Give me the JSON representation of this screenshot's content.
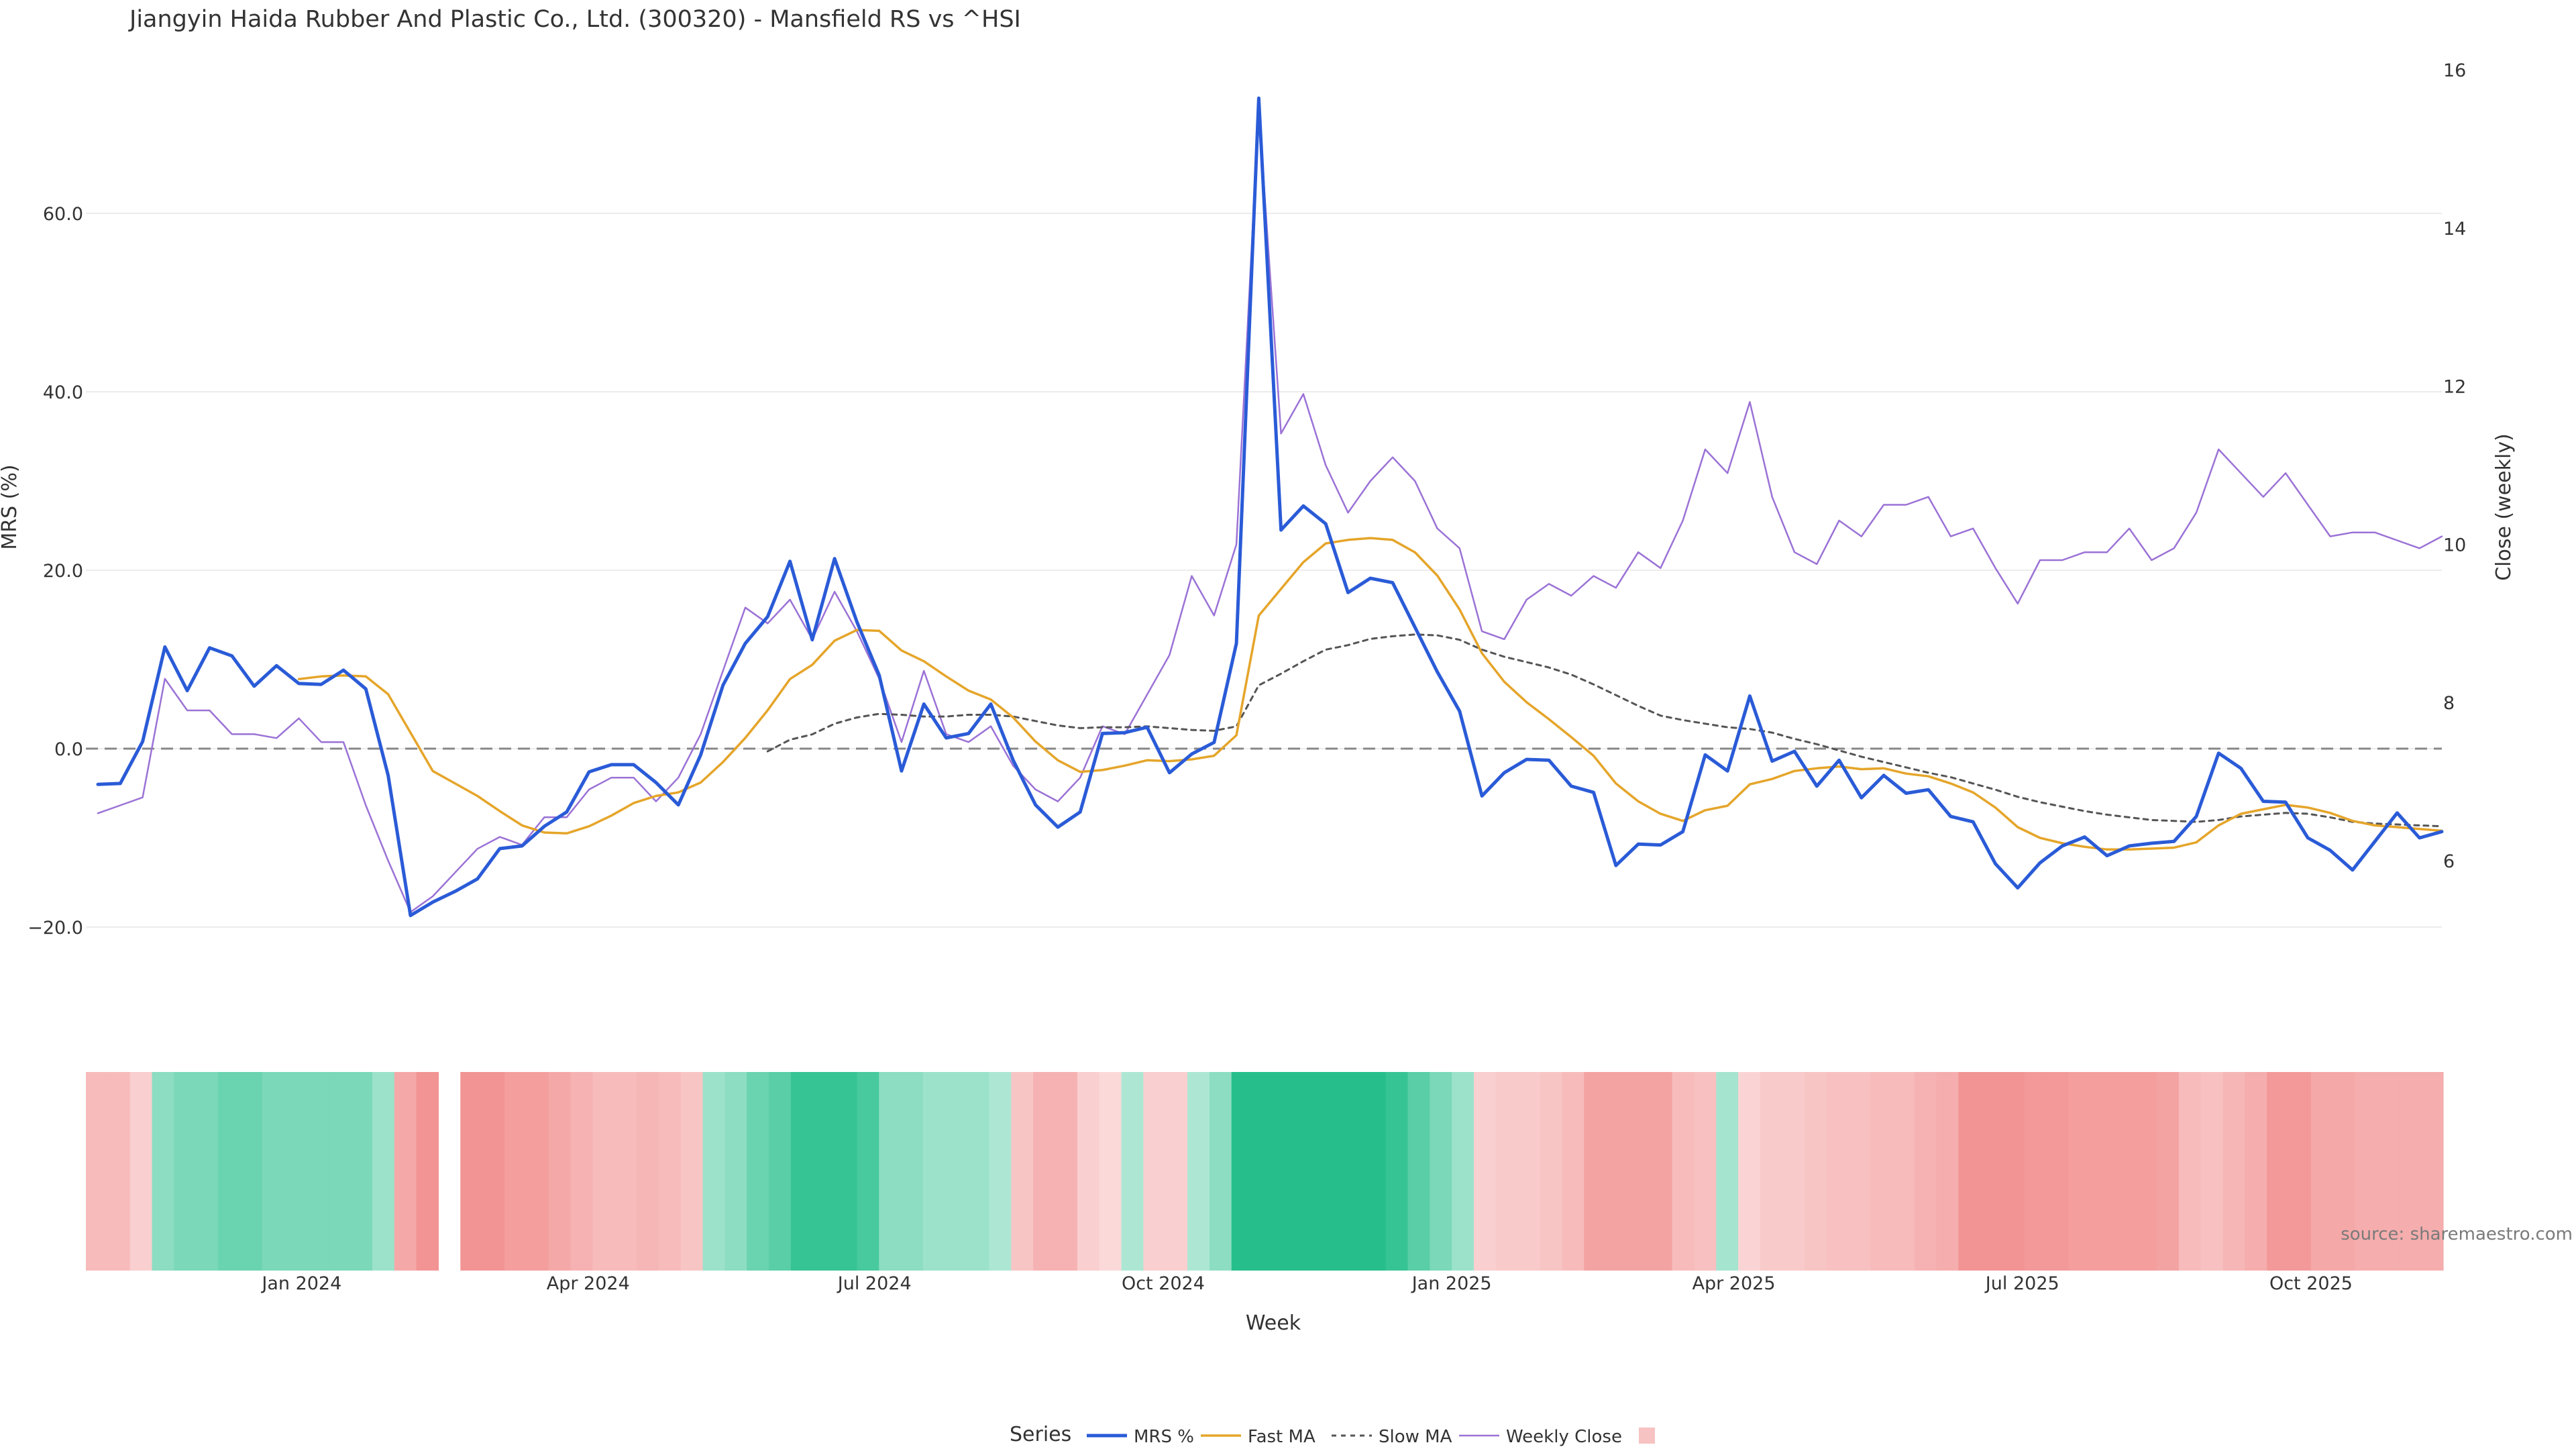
{
  "title": "Jiangyin Haida Rubber And Plastic Co., Ltd. (300320) - Mansfield RS vs ^HSI",
  "source": "source: sharemaestro.com",
  "colors": {
    "mrs": "#2a5bd7",
    "fast": "#e5a52a",
    "slow": "#555555",
    "close": "#9b72d6",
    "zero": "#888888",
    "grid": "#ececec",
    "positive": "#26bf8c",
    "negative": "#f08080"
  },
  "legend": {
    "title": "Series",
    "items": [
      "MRS %",
      "Fast MA",
      "Slow MA",
      "Weekly Close",
      ""
    ]
  },
  "chart_data": {
    "type": "line",
    "xlabel": "Week",
    "ylabel_left": "MRS (%)",
    "ylabel_right": "Close (weekly)",
    "ylim_left": [
      -30,
      73
    ],
    "ylim_right": [
      4.3,
      16.3
    ],
    "left_ticks": [
      -20,
      0,
      20,
      40,
      60
    ],
    "left_tick_labels": [
      "−20.0",
      "0.0",
      "20.0",
      "40.0",
      "60.0"
    ],
    "right_ticks": [
      6,
      8,
      10,
      12,
      14,
      16
    ],
    "right_tick_labels": [
      "6",
      "8",
      "10",
      "12",
      "14",
      "16"
    ],
    "x_tick_labels": [
      "Jan 2024",
      "Apr 2024",
      "Jul 2024",
      "Oct 2024",
      "Jan 2025",
      "Apr 2025",
      "Jul 2025",
      "Oct 2025"
    ],
    "x_tick_weeks": [
      9.8,
      22.8,
      35.8,
      48.9,
      62.0,
      74.8,
      87.9,
      101.0
    ],
    "grid": true,
    "zero_line": true,
    "legend_position": "bottom-center",
    "heatmap_gap_weeks": [
      16
    ],
    "series": [
      {
        "name": "MRS %",
        "axis": "left",
        "values": [
          -4,
          -3.9,
          0.8,
          11.4,
          6.5,
          11.3,
          10.4,
          7,
          9.3,
          7.3,
          7.2,
          8.8,
          6.7,
          -3,
          -18.7,
          -17.2,
          -16,
          -14.6,
          -11.2,
          -10.9,
          -8.7,
          -7.1,
          -2.6,
          -1.8,
          -1.8,
          -3.8,
          -6.3,
          -0.7,
          7.1,
          11.8,
          14.8,
          21,
          12.2,
          21.3,
          14.2,
          8.2,
          -2.5,
          5,
          1.2,
          1.7,
          5,
          -1.3,
          -6.3,
          -8.8,
          -7.1,
          1.7,
          1.8,
          2.4,
          -2.7,
          -0.6,
          0.7,
          11.8,
          72.9,
          24.5,
          27.2,
          25.2,
          17.5,
          19.1,
          18.6,
          13.6,
          8.6,
          4.2,
          -5.3,
          -2.7,
          -1.2,
          -1.3,
          -4.2,
          -4.9,
          -13.1,
          -10.7,
          -10.8,
          -9.3,
          -0.7,
          -2.5,
          5.9,
          -1.4,
          -0.3,
          -4.2,
          -1.3,
          -5.5,
          -3,
          -5,
          -4.6,
          -7.6,
          -8.2,
          -12.9,
          -15.6,
          -12.8,
          -10.9,
          -9.9,
          -12,
          -10.9,
          -10.6,
          -10.4,
          -7.6,
          -0.5,
          -2.2,
          -5.9,
          -6,
          -10,
          -11.4,
          -13.6,
          -10.4,
          -7.2,
          -10,
          -9.3
        ]
      },
      {
        "name": "Fast MA",
        "axis": "left",
        "values": [
          null,
          null,
          null,
          null,
          null,
          null,
          null,
          null,
          null,
          7.8,
          8.1,
          8.2,
          8.1,
          6.1,
          1.8,
          -2.5,
          -3.9,
          -5.3,
          -7,
          -8.6,
          -9.4,
          -9.5,
          -8.7,
          -7.5,
          -6.1,
          -5.3,
          -4.9,
          -3.8,
          -1.5,
          1.2,
          4.3,
          7.8,
          9.4,
          12.1,
          13.3,
          13.2,
          11,
          9.8,
          8.1,
          6.5,
          5.5,
          3.5,
          0.8,
          -1.3,
          -2.6,
          -2.4,
          -1.9,
          -1.3,
          -1.4,
          -1.2,
          -0.8,
          1.5,
          14.9,
          17.9,
          20.9,
          23,
          23.4,
          23.6,
          23.4,
          22,
          19.4,
          15.6,
          10.7,
          7.5,
          5.2,
          3.3,
          1.3,
          -0.8,
          -3.9,
          -5.9,
          -7.3,
          -8.1,
          -6.9,
          -6.4,
          -4,
          -3.4,
          -2.5,
          -2.2,
          -2,
          -2.3,
          -2.2,
          -2.8,
          -3.1,
          -3.9,
          -4.9,
          -6.6,
          -8.8,
          -10,
          -10.6,
          -11,
          -11.3,
          -11.3,
          -11.2,
          -11.1,
          -10.5,
          -8.6,
          -7.3,
          -6.8,
          -6.3,
          -6.6,
          -7.2,
          -8.1,
          -8.6,
          -8.8,
          -9,
          -9.2
        ]
      },
      {
        "name": "Slow MA",
        "axis": "left",
        "values": [
          null,
          null,
          null,
          null,
          null,
          null,
          null,
          null,
          null,
          null,
          null,
          null,
          null,
          null,
          null,
          null,
          null,
          null,
          null,
          null,
          null,
          null,
          null,
          null,
          null,
          null,
          null,
          null,
          null,
          null,
          -0.3,
          1,
          1.6,
          2.8,
          3.5,
          3.9,
          3.8,
          3.6,
          3.6,
          3.8,
          3.8,
          3.6,
          3.1,
          2.6,
          2.3,
          2.4,
          2.4,
          2.5,
          2.3,
          2.1,
          2,
          2.5,
          7.1,
          8.4,
          9.8,
          11.1,
          11.6,
          12.3,
          12.6,
          12.8,
          12.7,
          12.2,
          11.1,
          10.3,
          9.7,
          9.1,
          8.3,
          7.2,
          6,
          4.8,
          3.7,
          3.2,
          2.8,
          2.4,
          2.2,
          1.8,
          1.1,
          0.5,
          -0.2,
          -0.9,
          -1.5,
          -2.1,
          -2.7,
          -3.2,
          -3.9,
          -4.6,
          -5.4,
          -6,
          -6.5,
          -7,
          -7.4,
          -7.7,
          -8,
          -8.1,
          -8.2,
          -8,
          -7.6,
          -7.4,
          -7.2,
          -7.3,
          -7.7,
          -8.2,
          -8.4,
          -8.5,
          -8.6,
          -8.7
        ]
      },
      {
        "name": "Weekly Close",
        "axis": "right",
        "values": [
          6.6,
          6.7,
          6.8,
          8.3,
          7.9,
          7.9,
          7.6,
          7.6,
          7.55,
          7.8,
          7.5,
          7.5,
          6.7,
          6,
          5.35,
          5.55,
          5.85,
          6.15,
          6.3,
          6.2,
          6.55,
          6.55,
          6.9,
          7.05,
          7.05,
          6.75,
          7.05,
          7.6,
          8.4,
          9.2,
          9,
          9.3,
          8.8,
          9.4,
          8.9,
          8.3,
          7.5,
          8.4,
          7.6,
          7.5,
          7.7,
          7.2,
          6.9,
          6.75,
          7.05,
          7.7,
          7.6,
          8.1,
          8.6,
          9.6,
          9.1,
          10,
          15.5,
          11.4,
          11.9,
          11,
          10.4,
          10.8,
          11.1,
          10.8,
          10.2,
          9.95,
          8.9,
          8.8,
          9.3,
          9.5,
          9.35,
          9.6,
          9.45,
          9.9,
          9.7,
          10.3,
          11.2,
          10.9,
          11.8,
          10.6,
          9.9,
          9.75,
          10.3,
          10.1,
          10.5,
          10.5,
          10.6,
          10.1,
          10.2,
          9.7,
          9.25,
          9.8,
          9.8,
          9.9,
          9.9,
          10.2,
          9.8,
          9.95,
          10.4,
          11.2,
          10.9,
          10.6,
          10.9,
          10.5,
          10.1,
          10.15,
          10.15,
          10.05,
          9.95,
          10.1
        ]
      }
    ],
    "heatmap": [
      -0.4,
      -0.4,
      -0.2,
      0.4,
      0.5,
      0.5,
      0.6,
      0.6,
      0.5,
      0.5,
      0.5,
      0.5,
      0.5,
      0.3,
      -0.6,
      -0.8,
      null,
      -0.8,
      -0.8,
      -0.7,
      -0.7,
      -0.6,
      -0.5,
      -0.4,
      -0.4,
      -0.45,
      -0.4,
      -0.3,
      0.3,
      0.4,
      0.6,
      0.7,
      0.9,
      0.9,
      0.9,
      0.8,
      0.4,
      0.4,
      0.3,
      0.3,
      0.3,
      0.2,
      -0.3,
      -0.5,
      -0.5,
      -0.2,
      -0.1,
      0.2,
      -0.2,
      -0.2,
      0.2,
      0.4,
      1,
      1,
      1,
      1,
      1,
      1,
      1,
      0.9,
      0.7,
      0.5,
      0.3,
      -0.2,
      -0.25,
      -0.25,
      -0.3,
      -0.4,
      -0.65,
      -0.65,
      -0.65,
      -0.65,
      -0.4,
      -0.35,
      0.25,
      -0.15,
      -0.25,
      -0.25,
      -0.3,
      -0.35,
      -0.35,
      -0.4,
      -0.4,
      -0.5,
      -0.55,
      -0.8,
      -0.8,
      -0.8,
      -0.75,
      -0.75,
      -0.7,
      -0.7,
      -0.7,
      -0.7,
      -0.65,
      -0.4,
      -0.35,
      -0.45,
      -0.55,
      -0.75,
      -0.75,
      -0.6,
      -0.6,
      -0.55,
      -0.55,
      -0.55,
      -0.55
    ]
  }
}
